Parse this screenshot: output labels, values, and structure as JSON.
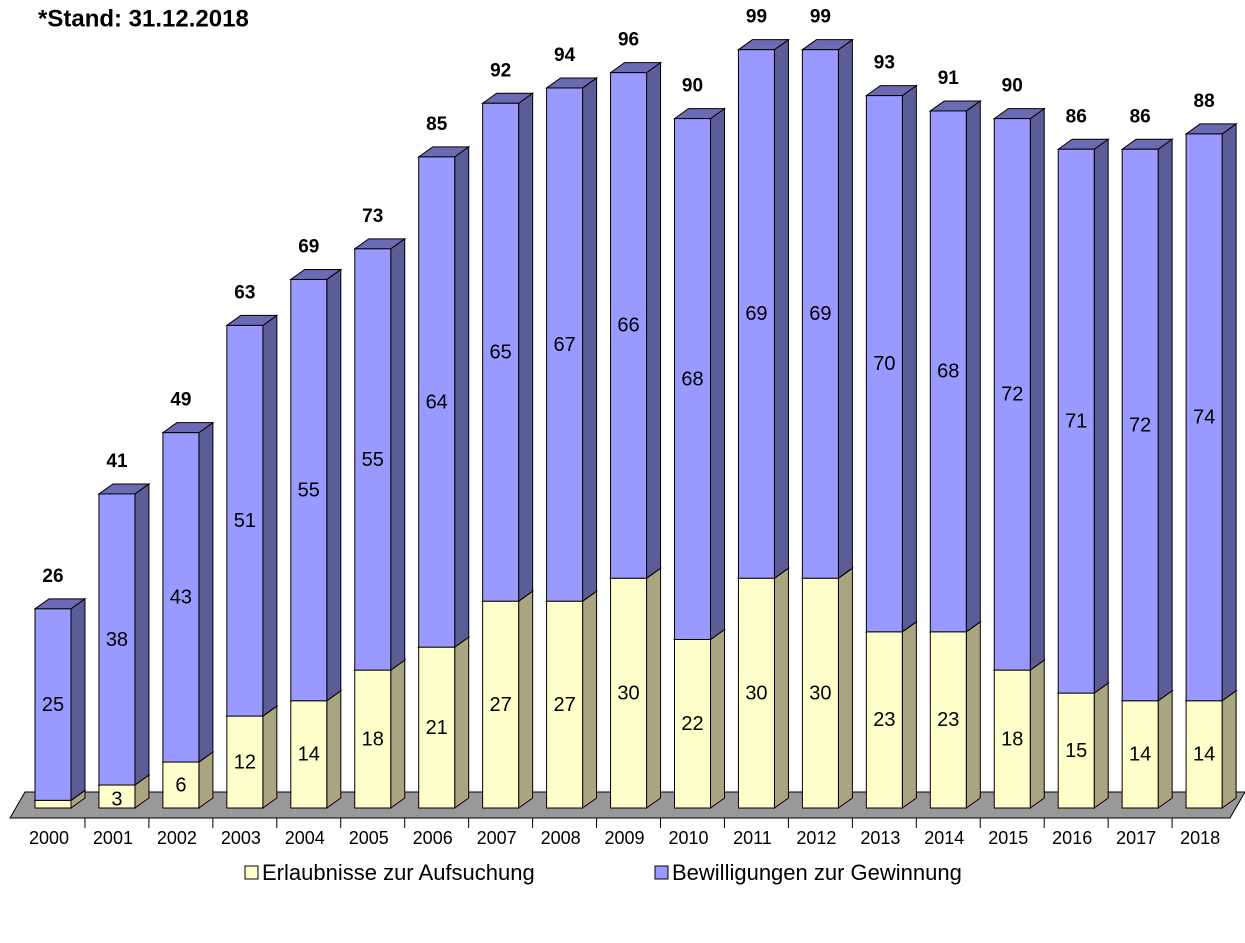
{
  "chart_data": {
    "type": "bar3d-stacked",
    "title": "*Stand: 31.12.2018",
    "categories": [
      "2000",
      "2001",
      "2002",
      "2003",
      "2004",
      "2005",
      "2006",
      "2007",
      "2008",
      "2009",
      "2010",
      "2011",
      "2012",
      "2013",
      "2014",
      "2015",
      "2016",
      "2017",
      "2018"
    ],
    "series": [
      {
        "name": "Erlaubnisse zur Aufsuchung",
        "color": "#ffffcc",
        "values": [
          1,
          3,
          6,
          12,
          14,
          18,
          21,
          27,
          27,
          30,
          22,
          30,
          30,
          23,
          23,
          18,
          15,
          14,
          14
        ],
        "value_labels": [
          null,
          "3",
          "6",
          "12",
          "14",
          "18",
          "21",
          "27",
          "27",
          "30",
          "22",
          "30",
          "30",
          "23",
          "23",
          "18",
          "15",
          "14",
          "14"
        ]
      },
      {
        "name": "Bewilligungen zur Gewinnung",
        "color": "#9999ff",
        "values": [
          25,
          38,
          43,
          51,
          55,
          55,
          64,
          65,
          67,
          66,
          68,
          69,
          69,
          70,
          68,
          72,
          71,
          72,
          74
        ]
      }
    ],
    "totals": [
      26,
      41,
      49,
      63,
      69,
      73,
      85,
      92,
      94,
      96,
      90,
      99,
      99,
      93,
      91,
      90,
      86,
      86,
      88
    ],
    "legend": "bottom"
  }
}
